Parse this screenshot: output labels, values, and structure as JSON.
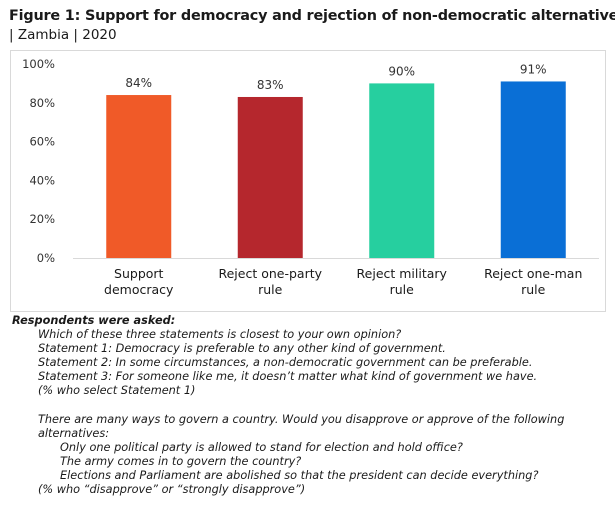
{
  "figure": {
    "title": "Figure 1: Support for democracy and rejection of non-democratic alternatives",
    "subtitle": "| Zambia | 2020"
  },
  "chart_data": {
    "type": "bar",
    "title": "Support for democracy and rejection of non-democratic alternatives",
    "categories": [
      [
        "Support",
        "democracy"
      ],
      [
        "Reject one-party",
        "rule"
      ],
      [
        "Reject military",
        "rule"
      ],
      [
        "Reject one-man",
        "rule"
      ]
    ],
    "values": [
      84,
      83,
      90,
      91
    ],
    "value_labels": [
      "84%",
      "83%",
      "90%",
      "91%"
    ],
    "colors": [
      "#f05a28",
      "#b5272d",
      "#26cf9f",
      "#0a6fd6"
    ],
    "y_ticks": [
      0,
      20,
      40,
      60,
      80,
      100
    ],
    "y_tick_labels": [
      "0%",
      "20%",
      "40%",
      "60%",
      "80%",
      "100%"
    ],
    "ylim": [
      0,
      100
    ],
    "grid": false,
    "xlabel": "",
    "ylabel": ""
  },
  "notes": {
    "heading": "Respondents were asked:",
    "q1": "Which of these three statements is closest to your own opinion?",
    "s1": "Statement 1: Democracy is preferable to any other kind of government.",
    "s2": "Statement 2: In some circumstances, a non-democratic government can be preferable.",
    "s3": "Statement 3: For someone like me, it doesn’t matter what kind of government we have.",
    "q1_note": "(% who select Statement 1)",
    "q2a": "There are many ways to govern a country. Would you disapprove or approve of the following",
    "q2b": "alternatives:",
    "a1": "Only one political party is allowed to stand for election and hold office?",
    "a2": "The army comes in to govern the country?",
    "a3": "Elections and Parliament are abolished so that the president can decide everything?",
    "q2_note": "(% who “disapprove” or “strongly disapprove”)"
  }
}
